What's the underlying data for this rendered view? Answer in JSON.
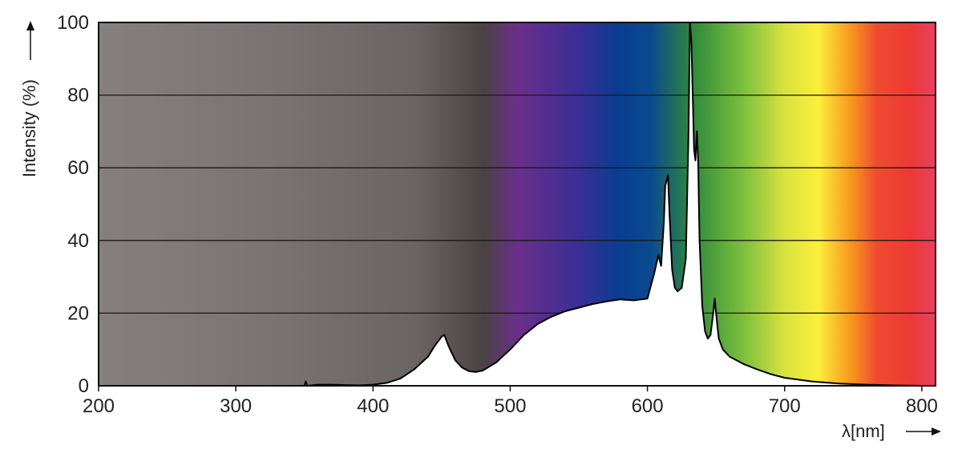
{
  "chart_data": {
    "type": "area",
    "title": "",
    "xlabel": "λ[nm]",
    "ylabel": "Intensity (%)",
    "xlim": [
      200,
      810
    ],
    "ylim": [
      0,
      100
    ],
    "xticks": [
      200,
      300,
      400,
      500,
      600,
      700,
      800
    ],
    "yticks": [
      0,
      20,
      40,
      60,
      80,
      100
    ],
    "grid": "horizontal",
    "background": "visible spectrum gradient (ultraviolet gray to deep red)",
    "colors": {
      "uv_gray": "#857f7d",
      "violet": "#6b2f8a",
      "blue": "#0a3d91",
      "green": "#2f8a3a",
      "yellow": "#f7ea3a",
      "orange": "#f7941d",
      "red": "#ee3a36",
      "pink": "#e8405f",
      "curve_fill": "#ffffff",
      "curve_stroke": "#000000",
      "gridline": "#1a1a1a"
    },
    "series": [
      {
        "x": [
          350,
          351,
          352,
          360,
          370,
          380,
          390,
          400,
          410,
          420,
          430,
          440,
          445,
          450,
          452,
          455,
          460,
          465,
          470,
          475,
          480,
          490,
          500,
          510,
          520,
          530,
          540,
          550,
          560,
          570,
          580,
          590,
          600,
          605,
          608,
          610,
          612,
          613,
          615,
          616,
          618,
          620,
          622,
          625,
          628,
          630,
          631,
          632,
          633,
          634,
          635,
          636,
          637,
          638,
          640,
          642,
          644,
          646,
          648,
          649,
          650,
          652,
          655,
          660,
          670,
          680,
          690,
          700,
          720,
          740,
          760,
          780,
          800,
          810
        ],
        "y": [
          0,
          1.2,
          0,
          0.3,
          0.3,
          0.2,
          0.1,
          0.3,
          0.8,
          2,
          4.5,
          8,
          11,
          13.5,
          14,
          11,
          7,
          5,
          4,
          3.8,
          4.2,
          6.5,
          10,
          14,
          17,
          19,
          20.5,
          21.5,
          22.5,
          23.2,
          23.8,
          23.5,
          24,
          31,
          36,
          33,
          45,
          55,
          58,
          48,
          32,
          27,
          26,
          27,
          35,
          70,
          100,
          95,
          80,
          65,
          62,
          70,
          62,
          40,
          22,
          15,
          13,
          14,
          20,
          24,
          20,
          13,
          10,
          8,
          6,
          4.5,
          3.2,
          2.2,
          1.2,
          0.6,
          0.3,
          0.1,
          0,
          0
        ]
      }
    ]
  }
}
